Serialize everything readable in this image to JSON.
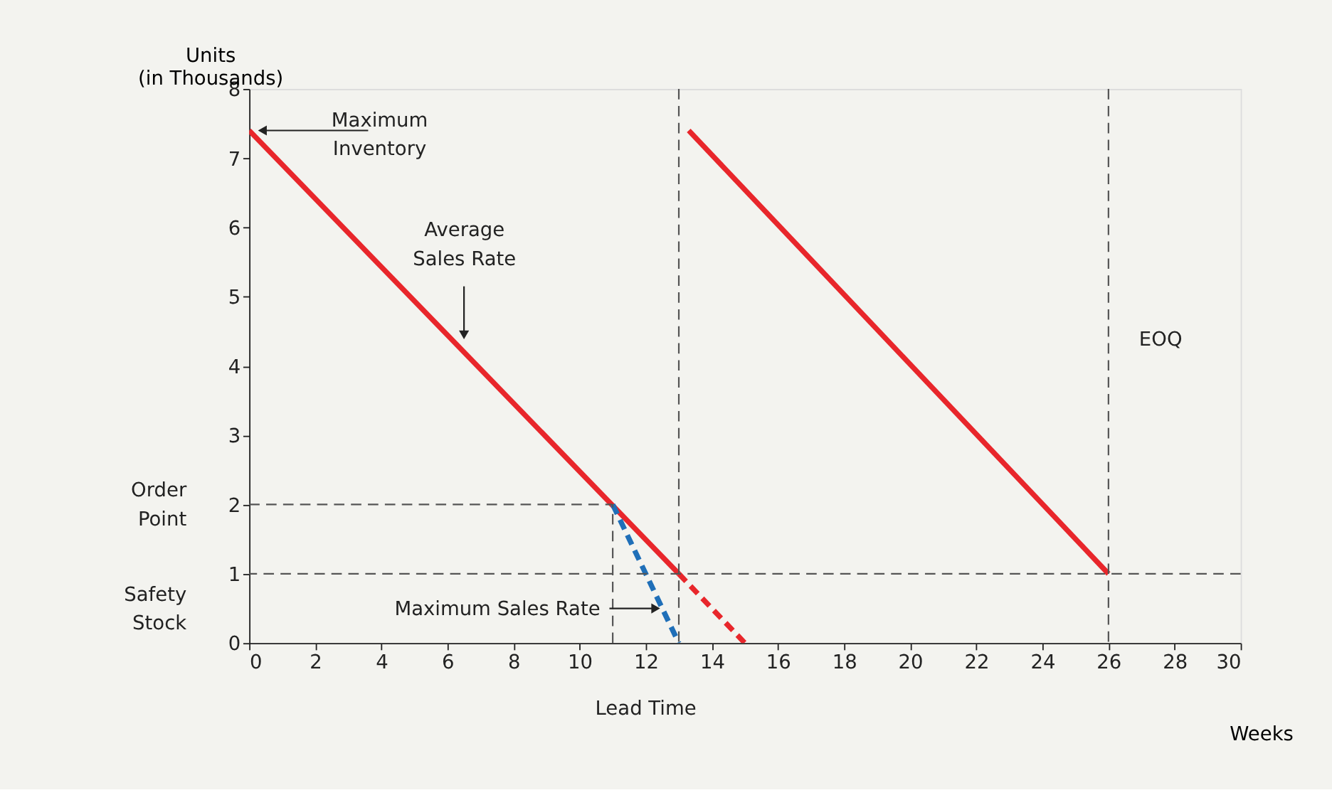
{
  "chart_data": {
    "type": "line",
    "xlabel": "Weeks",
    "ylabel": "Units\n(in Thousands)",
    "xlim": [
      0,
      30
    ],
    "xticks": [
      0,
      2,
      4,
      6,
      8,
      10,
      12,
      14,
      16,
      18,
      20,
      22,
      24,
      26,
      28,
      30
    ],
    "ylim": [
      0,
      8
    ],
    "yticks": [
      0,
      1,
      2,
      3,
      4,
      5,
      6,
      7,
      8
    ],
    "grid": false,
    "marker": "none",
    "series": [
      {
        "color": "#e8262b",
        "line_style": "solid",
        "x": [
          0,
          13
        ],
        "values": [
          7.4,
          1
        ]
      },
      {
        "color": "#e8262b",
        "line_style": "dashed",
        "x": [
          13,
          15
        ],
        "values": [
          1,
          0
        ]
      },
      {
        "color": "#e8262b",
        "line_style": "solid",
        "x": [
          13.3,
          26
        ],
        "values": [
          7.4,
          1
        ]
      },
      {
        "color": "#1f6fb8",
        "line_style": "dashed",
        "x": [
          11,
          13
        ],
        "values": [
          2,
          0
        ]
      },
      {
        "color": "#555555",
        "line_style": "dashed",
        "x": [
          0,
          11
        ],
        "values": [
          2,
          2
        ]
      },
      {
        "color": "#555555",
        "line_style": "dashed",
        "x": [
          11,
          11
        ],
        "values": [
          0,
          2
        ]
      }
    ],
    "ref_lines": [
      {
        "axis": "y",
        "value": 1,
        "line_style": "dashed",
        "color": "#555555"
      },
      {
        "axis": "x",
        "value": 13,
        "line_style": "dashed",
        "color": "#555555"
      },
      {
        "axis": "x",
        "value": 26,
        "line_style": "dashed",
        "color": "#555555"
      }
    ],
    "annotations": [
      {
        "text": "Maximum\nInventory",
        "x": 0,
        "y": 7.4
      },
      "Average\nSales Rate",
      {
        "text": "Maximum Sales Rate",
        "x": 12.4,
        "y": 0.5
      },
      {
        "text": "EOQ",
        "x": 26,
        "y": 4.2
      },
      "Order\nPoint",
      "Safety\nStock",
      "Lead Time"
    ]
  }
}
